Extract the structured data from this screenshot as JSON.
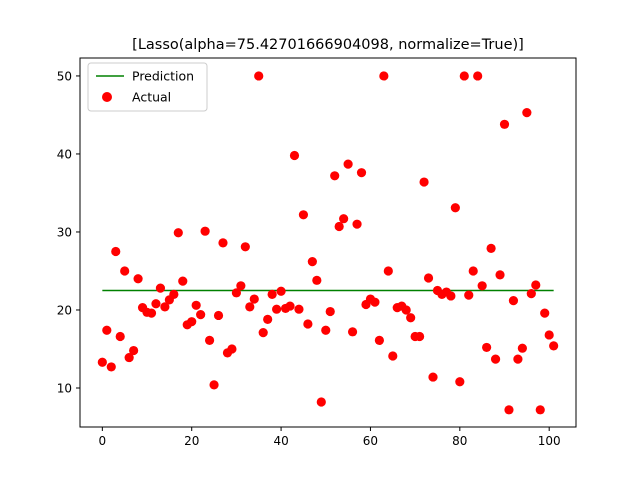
{
  "chart_data": {
    "type": "scatter",
    "title": "[Lasso(alpha=75.42701666904098, normalize=True)]",
    "xlabel": "",
    "ylabel": "",
    "xlim": [
      -5,
      106
    ],
    "ylim": [
      5,
      52.3
    ],
    "xticks": [
      0,
      20,
      40,
      60,
      80,
      100
    ],
    "yticks": [
      10,
      20,
      30,
      40,
      50
    ],
    "legend": {
      "placement": "top-left",
      "entries": [
        "Prediction",
        "Actual"
      ]
    },
    "colors": {
      "prediction": "#008000",
      "actual": "#ff0000"
    },
    "series": [
      {
        "name": "Prediction",
        "kind": "line",
        "x": [
          0,
          101
        ],
        "y": [
          22.5,
          22.5
        ]
      },
      {
        "name": "Actual",
        "kind": "scatter",
        "x": [
          0,
          1,
          2,
          3,
          4,
          5,
          6,
          7,
          8,
          9,
          10,
          11,
          12,
          13,
          14,
          15,
          16,
          17,
          18,
          19,
          20,
          21,
          22,
          23,
          24,
          25,
          26,
          27,
          28,
          29,
          30,
          31,
          32,
          33,
          34,
          35,
          36,
          37,
          38,
          39,
          40,
          41,
          42,
          43,
          44,
          45,
          46,
          47,
          48,
          49,
          50,
          51,
          52,
          53,
          54,
          55,
          56,
          57,
          58,
          59,
          60,
          61,
          62,
          63,
          64,
          65,
          66,
          67,
          68,
          69,
          70,
          71,
          72,
          73,
          74,
          75,
          76,
          77,
          78,
          79,
          80,
          81,
          82,
          83,
          84,
          85,
          86,
          87,
          88,
          89,
          90,
          91,
          92,
          93,
          94,
          95,
          96,
          97,
          98,
          99,
          100,
          101
        ],
        "y": [
          13.3,
          17.4,
          12.7,
          27.5,
          16.6,
          25.0,
          13.9,
          14.8,
          24.0,
          20.3,
          19.7,
          19.6,
          20.8,
          22.8,
          20.4,
          21.3,
          22.0,
          29.9,
          23.7,
          18.1,
          18.5,
          20.6,
          19.4,
          30.1,
          16.1,
          10.4,
          19.3,
          28.6,
          14.5,
          15.0,
          22.2,
          23.1,
          28.1,
          20.4,
          21.4,
          50.0,
          17.1,
          18.8,
          22.0,
          20.1,
          22.4,
          20.2,
          20.5,
          39.8,
          20.1,
          32.2,
          18.2,
          26.2,
          23.8,
          8.2,
          17.4,
          19.8,
          37.2,
          30.7,
          31.7,
          38.7,
          17.2,
          31.0,
          37.6,
          20.7,
          21.4,
          21.0,
          16.1,
          50.0,
          25.0,
          14.1,
          20.3,
          20.5,
          20.0,
          19.0,
          16.6,
          16.6,
          36.4,
          24.1,
          11.4,
          22.5,
          22.0,
          22.3,
          21.8,
          33.1,
          10.8,
          50.0,
          21.9,
          25.0,
          50.0,
          23.1,
          15.2,
          27.9,
          13.7,
          24.5,
          43.8,
          7.2,
          21.2,
          13.7,
          15.1,
          45.3,
          22.1,
          23.2,
          7.2,
          19.6,
          16.8,
          15.4
        ]
      }
    ]
  }
}
